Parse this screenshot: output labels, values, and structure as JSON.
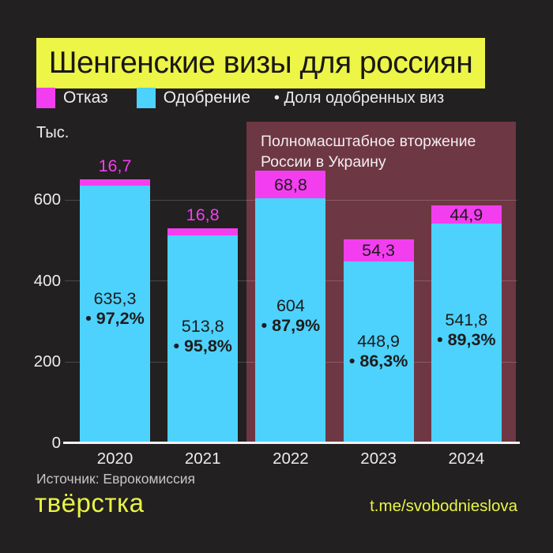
{
  "title": "Шенгенские визы для россиян",
  "legend": {
    "refusal_label": "Отказ",
    "approval_label": "Одобрение",
    "share_note": "• Доля одобренных виз"
  },
  "axis": {
    "unit_label": "Тыс."
  },
  "annotation": {
    "text": "Полномасштабное вторжение России в Украину"
  },
  "chart_data": {
    "type": "bar",
    "stacked": true,
    "title": "Шенгенские визы для россиян",
    "ylabel": "Тыс.",
    "ylim": [
      0,
      700
    ],
    "yticks": [
      0,
      200,
      400,
      600
    ],
    "grid": "horizontal",
    "legend_position": "top",
    "categories": [
      "2020",
      "2021",
      "2022",
      "2023",
      "2024"
    ],
    "series": [
      {
        "name": "Одобрение",
        "color": "#4cd2fc",
        "values": [
          635.3,
          513.8,
          604,
          448.9,
          541.8
        ],
        "labels": [
          "635,3",
          "513,8",
          "604",
          "448,9",
          "541,8"
        ]
      },
      {
        "name": "Отказ",
        "color": "#f33ef0",
        "values": [
          16.7,
          16.8,
          68.8,
          54.3,
          44.9
        ],
        "labels": [
          "16,7",
          "16,8",
          "68,8",
          "54,3",
          "44,9"
        ]
      }
    ],
    "approval_share_labels": [
      "• 97,2%",
      "• 95,8%",
      "• 87,9%",
      "• 86,3%",
      "• 89,3%"
    ],
    "highlight_region": {
      "label": "Полномасштабное вторжение России в Украину",
      "from_category": "2022",
      "to_category": "2024",
      "color": "#6e3744"
    }
  },
  "footer": {
    "source": "Источник: Еврокомиссия",
    "logo": "твёрстка",
    "link": "t.me/svobodnieslova"
  },
  "colors": {
    "background": "#232021",
    "banner": "#edf546",
    "approval": "#4cd2fc",
    "refusal": "#f33ef0",
    "highlight": "#6e3744",
    "accent_yellow": "#e8f544"
  }
}
